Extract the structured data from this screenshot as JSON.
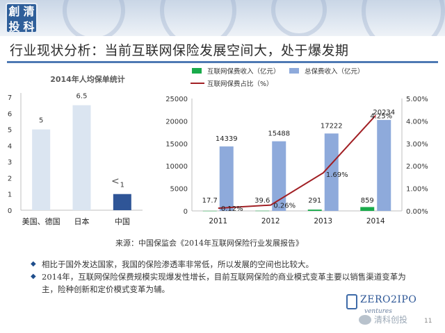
{
  "logo": {
    "chars": [
      "創",
      "清",
      "投",
      "科"
    ]
  },
  "page_title": "行业现状分析：当前互联网保险发展空间大，处于爆发期",
  "source": "来源：中国保监会《2014年互联网保险行业发展报告》",
  "bullets": [
    "相比于国外发达国家，我国的保险渗透率非常低，所以发展的空间也比较大。",
    "2014年，互联网保险保费规模实现爆发性增长，目前互联网保险的商业模式变革主要以销售渠道变革为主，险种创新和定价模式变革为辅。"
  ],
  "brand": {
    "name": "ZERO2IPO",
    "sub": "ventures",
    "wechat": "清科创投"
  },
  "page_number": "11",
  "colors": {
    "left_bar_light": "#dbe5f1",
    "left_bar_dark": "#2f5597",
    "total_premium": "#8eaadb",
    "internet_premium": "#1aab4b",
    "ratio_line": "#a11f24"
  },
  "chart_data": [
    {
      "type": "bar",
      "title": "2014年人均保单统计",
      "categories": [
        "美国、德国",
        "日本",
        "中国"
      ],
      "values": [
        5,
        6.5,
        1
      ],
      "ylim": [
        0,
        7
      ],
      "yticks": [
        0,
        1,
        2,
        3,
        4,
        5,
        6,
        7
      ],
      "grid": false,
      "annotation": "<"
    },
    {
      "type": "bar",
      "title": "",
      "categories": [
        "2011",
        "2012",
        "2013",
        "2014"
      ],
      "series": [
        {
          "name": "互联网保费收入（亿元）",
          "values": [
            17.7,
            39.6,
            291,
            859
          ],
          "labels": [
            "17.7",
            "39.6",
            "291",
            "859"
          ],
          "axis": "left",
          "kind": "bar"
        },
        {
          "name": "总保费收入（亿元）",
          "values": [
            14339,
            15488,
            17222,
            20234
          ],
          "labels": [
            "14339",
            "15488",
            "17222",
            "20234"
          ],
          "axis": "left",
          "kind": "bar"
        },
        {
          "name": "互联网保费占比（%）",
          "values": [
            0.12,
            0.26,
            1.69,
            4.25
          ],
          "labels": [
            "0.12%",
            "0.26%",
            "1.69%",
            "4.25%"
          ],
          "axis": "right",
          "kind": "line"
        }
      ],
      "ylim": [
        0,
        25000
      ],
      "yticks": [
        "0",
        "5000",
        "10000",
        "15000",
        "20000",
        "25000"
      ],
      "y2lim": [
        0,
        5
      ],
      "y2ticks": [
        "0.00%",
        "1.00%",
        "2.00%",
        "3.00%",
        "4.00%",
        "5.00%"
      ],
      "legend_position": "top",
      "grid": false
    }
  ]
}
